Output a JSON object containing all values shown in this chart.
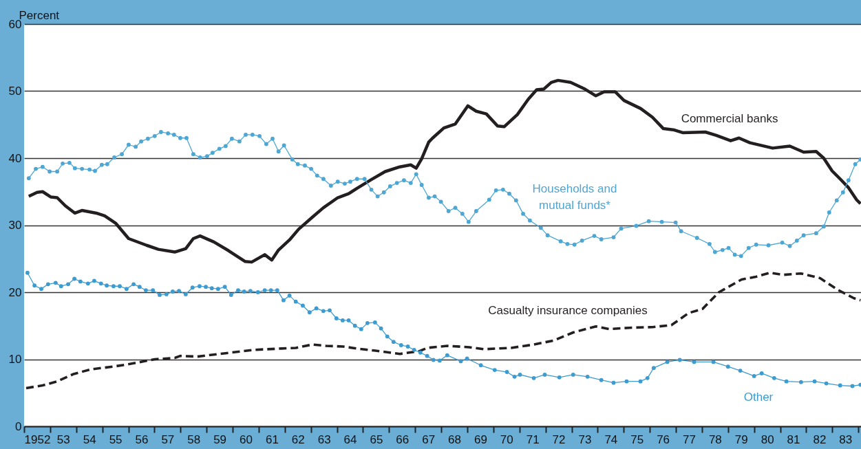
{
  "chart_data": {
    "type": "line",
    "ylabel": "Percent",
    "xlim": [
      1951.5,
      1983.6
    ],
    "ylim": [
      0,
      60
    ],
    "yticks": [
      0,
      10,
      20,
      30,
      40,
      50,
      60
    ],
    "xticks": [
      {
        "value": 1951.5,
        "label": null
      },
      {
        "value": 1952,
        "label": "1952"
      },
      {
        "value": 1952.5,
        "label": null
      },
      {
        "value": 1953,
        "label": "53"
      },
      {
        "value": 1953.5,
        "label": null
      },
      {
        "value": 1954,
        "label": "54"
      },
      {
        "value": 1954.5,
        "label": null
      },
      {
        "value": 1955,
        "label": "55"
      },
      {
        "value": 1955.5,
        "label": null
      },
      {
        "value": 1956,
        "label": "56"
      },
      {
        "value": 1956.5,
        "label": null
      },
      {
        "value": 1957,
        "label": "57"
      },
      {
        "value": 1957.5,
        "label": null
      },
      {
        "value": 1958,
        "label": "58"
      },
      {
        "value": 1958.5,
        "label": null
      },
      {
        "value": 1959,
        "label": "59"
      },
      {
        "value": 1959.5,
        "label": null
      },
      {
        "value": 1960,
        "label": "60"
      },
      {
        "value": 1960.5,
        "label": null
      },
      {
        "value": 1961,
        "label": "61"
      },
      {
        "value": 1961.5,
        "label": null
      },
      {
        "value": 1962,
        "label": "62"
      },
      {
        "value": 1962.5,
        "label": null
      },
      {
        "value": 1963,
        "label": "63"
      },
      {
        "value": 1963.5,
        "label": null
      },
      {
        "value": 1964,
        "label": "64"
      },
      {
        "value": 1964.5,
        "label": null
      },
      {
        "value": 1965,
        "label": "65"
      },
      {
        "value": 1965.5,
        "label": null
      },
      {
        "value": 1966,
        "label": "66"
      },
      {
        "value": 1966.5,
        "label": null
      },
      {
        "value": 1967,
        "label": "67"
      },
      {
        "value": 1967.5,
        "label": null
      },
      {
        "value": 1968,
        "label": "68"
      },
      {
        "value": 1968.5,
        "label": null
      },
      {
        "value": 1969,
        "label": "69"
      },
      {
        "value": 1969.5,
        "label": null
      },
      {
        "value": 1970,
        "label": "70"
      },
      {
        "value": 1970.5,
        "label": null
      },
      {
        "value": 1971,
        "label": "71"
      },
      {
        "value": 1971.5,
        "label": null
      },
      {
        "value": 1972,
        "label": "72"
      },
      {
        "value": 1972.5,
        "label": null
      },
      {
        "value": 1973,
        "label": "73"
      },
      {
        "value": 1973.5,
        "label": null
      },
      {
        "value": 1974,
        "label": "74"
      },
      {
        "value": 1974.5,
        "label": null
      },
      {
        "value": 1975,
        "label": "75"
      },
      {
        "value": 1975.5,
        "label": null
      },
      {
        "value": 1976,
        "label": "76"
      },
      {
        "value": 1976.5,
        "label": null
      },
      {
        "value": 1977,
        "label": "77"
      },
      {
        "value": 1977.5,
        "label": null
      },
      {
        "value": 1978,
        "label": "78"
      },
      {
        "value": 1978.5,
        "label": null
      },
      {
        "value": 1979,
        "label": "79"
      },
      {
        "value": 1979.5,
        "label": null
      },
      {
        "value": 1980,
        "label": "80"
      },
      {
        "value": 1980.5,
        "label": null
      },
      {
        "value": 1981,
        "label": "81"
      },
      {
        "value": 1981.5,
        "label": null
      },
      {
        "value": 1982,
        "label": "82"
      },
      {
        "value": 1982.5,
        "label": null
      },
      {
        "value": 1983,
        "label": "83"
      },
      {
        "value": 1983.5,
        "label": null
      }
    ],
    "grid": "y",
    "series": [
      {
        "name": "Commercial banks",
        "color": "#231f20",
        "line_style": "solid",
        "marker": "none",
        "x": [
          1951.68,
          1952.0,
          1952.21,
          1952.53,
          1952.77,
          1953.08,
          1953.45,
          1953.72,
          1954.27,
          1954.59,
          1955.01,
          1955.51,
          1956.2,
          1956.65,
          1957.28,
          1957.7,
          1957.99,
          1958.25,
          1958.78,
          1959.34,
          1959.97,
          1960.23,
          1960.73,
          1961.0,
          1961.26,
          1961.68,
          1962.03,
          1962.56,
          1962.98,
          1963.53,
          1963.95,
          1964.27,
          1964.82,
          1965.35,
          1965.91,
          1966.33,
          1966.54,
          1966.75,
          1967.02,
          1967.17,
          1967.6,
          1968.04,
          1968.52,
          1968.84,
          1969.23,
          1969.66,
          1969.92,
          1970.42,
          1970.84,
          1971.16,
          1971.43,
          1971.72,
          1971.98,
          1972.46,
          1973.01,
          1973.43,
          1973.75,
          1974.17,
          1974.51,
          1975.15,
          1975.6,
          1976.02,
          1976.44,
          1976.76,
          1977.63,
          1978.05,
          1978.6,
          1978.92,
          1979.34,
          1980.21,
          1980.87,
          1981.4,
          1981.88,
          1982.17,
          1982.49,
          1982.8,
          1983.12,
          1983.43,
          1983.58
        ],
        "values": [
          34.3,
          34.9,
          35.0,
          34.2,
          34.1,
          32.9,
          31.8,
          32.2,
          31.8,
          31.4,
          30.3,
          28.0,
          27.0,
          26.4,
          26.0,
          26.5,
          28.0,
          28.4,
          27.5,
          26.2,
          24.6,
          24.5,
          25.6,
          24.8,
          26.3,
          27.8,
          29.4,
          31.2,
          32.6,
          34.1,
          34.7,
          35.5,
          36.8,
          38.0,
          38.7,
          39.0,
          38.5,
          39.9,
          42.4,
          43.0,
          44.5,
          45.1,
          47.8,
          47.0,
          46.6,
          44.8,
          44.7,
          46.5,
          48.8,
          50.2,
          50.3,
          51.3,
          51.6,
          51.3,
          50.3,
          49.3,
          49.9,
          49.9,
          48.6,
          47.4,
          46.1,
          44.4,
          44.2,
          43.8,
          43.9,
          43.4,
          42.6,
          43.0,
          42.3,
          41.5,
          41.8,
          40.9,
          41.0,
          40.0,
          38.1,
          36.9,
          35.6,
          33.8,
          33.2
        ]
      },
      {
        "name": "Households and mutual funds*",
        "color": "#4ea6d3",
        "line_style": "solid",
        "marker": "circle",
        "x": [
          1951.68,
          1951.95,
          1952.21,
          1952.48,
          1952.77,
          1952.98,
          1953.24,
          1953.45,
          1953.72,
          1954.01,
          1954.22,
          1954.48,
          1954.69,
          1954.96,
          1955.25,
          1955.51,
          1955.78,
          1955.99,
          1956.25,
          1956.51,
          1956.75,
          1957.02,
          1957.25,
          1957.49,
          1957.73,
          1957.99,
          1958.25,
          1958.52,
          1958.73,
          1958.99,
          1959.23,
          1959.47,
          1959.76,
          1960.0,
          1960.26,
          1960.53,
          1960.79,
          1961.03,
          1961.26,
          1961.47,
          1961.79,
          1962.0,
          1962.27,
          1962.51,
          1962.74,
          1962.98,
          1963.27,
          1963.53,
          1963.8,
          1964.01,
          1964.27,
          1964.56,
          1964.82,
          1965.06,
          1965.3,
          1965.54,
          1965.8,
          1966.07,
          1966.33,
          1966.54,
          1966.75,
          1967.02,
          1967.25,
          1967.49,
          1967.78,
          1968.04,
          1968.31,
          1968.55,
          1968.84,
          1969.34,
          1969.6,
          1969.87,
          1970.11,
          1970.37,
          1970.64,
          1970.9,
          1971.32,
          1971.58,
          1972.08,
          1972.34,
          1972.61,
          1972.9,
          1973.37,
          1973.64,
          1974.11,
          1974.4,
          1974.98,
          1975.46,
          1975.96,
          1976.49,
          1976.7,
          1977.31,
          1977.79,
          1978.0,
          1978.29,
          1978.52,
          1978.76,
          1979.0,
          1979.29,
          1979.58,
          1980.05,
          1980.58,
          1980.87,
          1981.14,
          1981.4,
          1981.88,
          1982.17,
          1982.38,
          1982.67,
          1982.91,
          1983.12,
          1983.38,
          1983.58
        ],
        "values": [
          37.0,
          38.4,
          38.7,
          38.0,
          38.0,
          39.2,
          39.3,
          38.5,
          38.4,
          38.3,
          38.1,
          39.0,
          39.1,
          40.1,
          40.6,
          42.0,
          41.7,
          42.5,
          42.9,
          43.3,
          43.9,
          43.7,
          43.5,
          43.0,
          43.0,
          40.6,
          40.1,
          40.3,
          40.8,
          41.4,
          41.8,
          42.9,
          42.5,
          43.5,
          43.5,
          43.3,
          42.1,
          42.9,
          41.0,
          41.9,
          39.8,
          39.1,
          38.9,
          38.4,
          37.4,
          36.9,
          35.9,
          36.5,
          36.2,
          36.5,
          36.9,
          36.9,
          35.3,
          34.3,
          34.9,
          35.8,
          36.3,
          36.7,
          36.3,
          37.6,
          36.0,
          34.1,
          34.3,
          33.5,
          32.1,
          32.6,
          31.7,
          30.5,
          32.1,
          33.8,
          35.2,
          35.3,
          34.7,
          33.7,
          31.7,
          30.7,
          29.6,
          28.5,
          27.6,
          27.2,
          27.1,
          27.7,
          28.4,
          27.9,
          28.2,
          29.5,
          29.9,
          30.6,
          30.5,
          30.4,
          29.1,
          28.1,
          27.2,
          26.0,
          26.3,
          26.6,
          25.6,
          25.4,
          26.6,
          27.1,
          27.0,
          27.4,
          26.9,
          27.7,
          28.5,
          28.8,
          29.8,
          31.9,
          33.7,
          34.9,
          36.7,
          39.1,
          39.8
        ]
      },
      {
        "name": "Casualty insurance companies",
        "color": "#231f20",
        "line_style": "dashed",
        "marker": "none",
        "x": [
          1951.58,
          1952.21,
          1952.77,
          1953.4,
          1954.06,
          1954.9,
          1955.56,
          1956.51,
          1957.28,
          1957.49,
          1958.15,
          1959.23,
          1960.29,
          1961.37,
          1961.92,
          1962.56,
          1963.08,
          1963.74,
          1964.27,
          1964.93,
          1965.91,
          1966.65,
          1966.97,
          1967.73,
          1968.57,
          1969.13,
          1970.18,
          1971.05,
          1971.82,
          1972.56,
          1973.43,
          1973.95,
          1974.72,
          1975.6,
          1976.33,
          1976.99,
          1977.52,
          1978.15,
          1979.02,
          1979.57,
          1980.1,
          1980.63,
          1981.29,
          1982.03,
          1982.69,
          1983.33,
          1983.58
        ],
        "values": [
          5.7,
          6.1,
          6.7,
          7.8,
          8.5,
          8.9,
          9.3,
          10.0,
          10.2,
          10.5,
          10.4,
          10.9,
          11.4,
          11.6,
          11.7,
          12.2,
          12.0,
          11.9,
          11.6,
          11.3,
          10.8,
          11.2,
          11.7,
          12.0,
          11.8,
          11.5,
          11.7,
          12.2,
          12.8,
          14.0,
          14.9,
          14.5,
          14.7,
          14.8,
          15.1,
          16.9,
          17.5,
          20.0,
          21.9,
          22.3,
          22.9,
          22.6,
          22.8,
          22.1,
          20.4,
          19.1,
          18.8
        ]
      },
      {
        "name": "Other",
        "color": "#3d9bd0",
        "line_style": "solid",
        "marker": "circle",
        "x": [
          1951.63,
          1951.9,
          1952.16,
          1952.42,
          1952.71,
          1952.92,
          1953.19,
          1953.43,
          1953.66,
          1953.95,
          1954.19,
          1954.45,
          1954.67,
          1954.93,
          1955.17,
          1955.43,
          1955.7,
          1955.93,
          1956.17,
          1956.44,
          1956.7,
          1956.96,
          1957.2,
          1957.44,
          1957.7,
          1957.96,
          1958.23,
          1958.47,
          1958.7,
          1958.94,
          1959.2,
          1959.44,
          1959.71,
          1959.94,
          1960.18,
          1960.47,
          1960.73,
          1960.97,
          1961.21,
          1961.45,
          1961.68,
          1961.92,
          1962.19,
          1962.45,
          1962.71,
          1962.98,
          1963.22,
          1963.48,
          1963.72,
          1963.95,
          1964.19,
          1964.43,
          1964.67,
          1964.96,
          1965.19,
          1965.43,
          1965.67,
          1965.96,
          1966.22,
          1966.46,
          1966.7,
          1966.96,
          1967.2,
          1967.44,
          1967.73,
          1968.25,
          1968.49,
          1969.02,
          1969.55,
          1970.02,
          1970.31,
          1970.52,
          1971.05,
          1971.47,
          1972.03,
          1972.56,
          1973.11,
          1973.64,
          1974.11,
          1974.61,
          1975.14,
          1975.41,
          1975.65,
          1976.17,
          1976.65,
          1977.2,
          1977.94,
          1978.5,
          1978.97,
          1979.5,
          1979.79,
          1980.27,
          1980.74,
          1981.3,
          1981.82,
          1982.27,
          1982.8,
          1983.27,
          1983.58
        ],
        "values": [
          22.9,
          21.0,
          20.5,
          21.2,
          21.4,
          20.9,
          21.2,
          22.0,
          21.6,
          21.3,
          21.7,
          21.3,
          21.0,
          20.9,
          20.9,
          20.5,
          21.2,
          20.8,
          20.3,
          20.3,
          19.6,
          19.7,
          20.1,
          20.2,
          19.7,
          20.7,
          20.9,
          20.8,
          20.6,
          20.5,
          20.8,
          19.6,
          20.3,
          20.1,
          20.2,
          20.0,
          20.3,
          20.3,
          20.3,
          18.8,
          19.5,
          18.6,
          18.0,
          17.0,
          17.6,
          17.2,
          17.3,
          16.1,
          15.8,
          15.8,
          15.0,
          14.5,
          15.4,
          15.5,
          14.6,
          13.4,
          12.6,
          12.1,
          11.9,
          11.4,
          11.0,
          10.5,
          9.9,
          9.8,
          10.6,
          9.7,
          10.1,
          9.1,
          8.4,
          8.1,
          7.4,
          7.7,
          7.2,
          7.7,
          7.3,
          7.7,
          7.4,
          6.9,
          6.5,
          6.7,
          6.7,
          7.2,
          8.7,
          9.6,
          9.9,
          9.6,
          9.6,
          8.9,
          8.3,
          7.5,
          7.9,
          7.2,
          6.7,
          6.6,
          6.7,
          6.4,
          6.1,
          6.0,
          6.2
        ]
      }
    ]
  }
}
